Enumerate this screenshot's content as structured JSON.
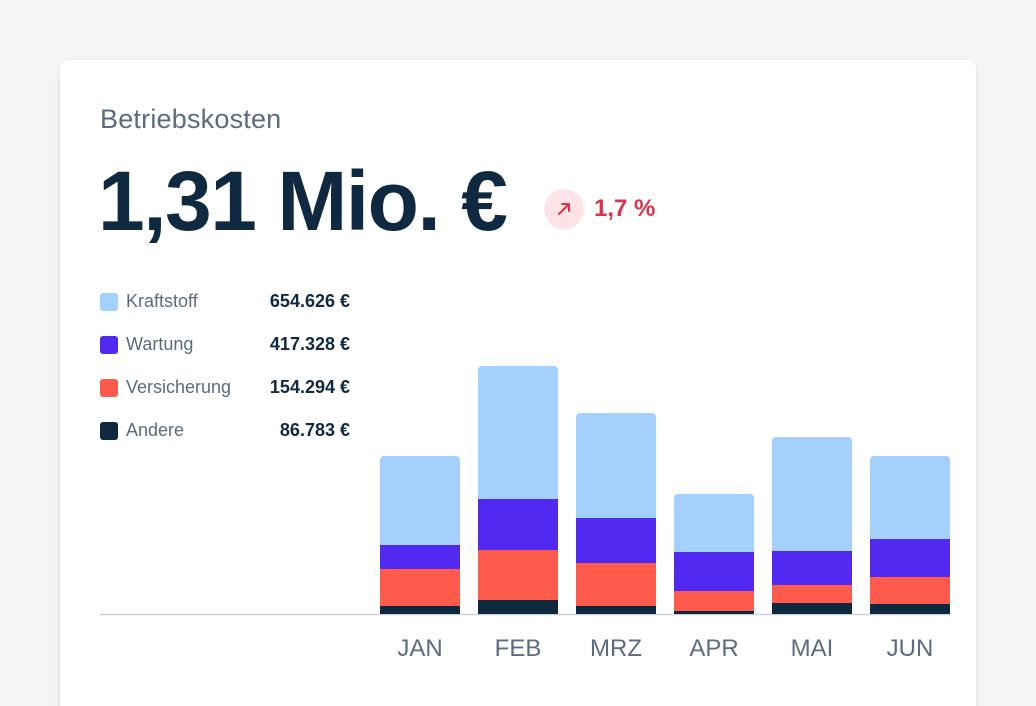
{
  "card": {
    "subtitle": "Betriebskosten",
    "amount": "1,31 Mio. €",
    "change": "1,7 %",
    "change_icon": "arrow-up-right-icon"
  },
  "colors": {
    "Kraftstoff": "#a3d0fc",
    "Wartung": "#5229f0",
    "Versicherung": "#ff5a4b",
    "Andere": "#0e2840",
    "change_text": "#e0314b",
    "change_bg": "#fde2e6"
  },
  "legend": [
    {
      "label": "Kraftstoff",
      "value": "654.626 €",
      "color": "#a3d0fc"
    },
    {
      "label": "Wartung",
      "value": "417.328 €",
      "color": "#5229f0"
    },
    {
      "label": "Versicherung",
      "value": "154.294 €",
      "color": "#ff5a4b"
    },
    {
      "label": "Andere",
      "value": "86.783 €",
      "color": "#0e2840"
    }
  ],
  "chart_data": {
    "type": "bar",
    "stacked": true,
    "categories": [
      "JAN",
      "FEB",
      "MRZ",
      "APR",
      "MAI",
      "JUN"
    ],
    "series": [
      {
        "name": "Andere",
        "values": [
          8,
          14,
          8,
          3,
          11,
          10
        ]
      },
      {
        "name": "Versicherung",
        "values": [
          37,
          50,
          43,
          20,
          18,
          27
        ]
      },
      {
        "name": "Wartung",
        "values": [
          24,
          51,
          45,
          39,
          34,
          38
        ]
      },
      {
        "name": "Kraftstoff",
        "values": [
          89,
          133,
          105,
          58,
          114,
          83
        ]
      }
    ],
    "ylim": [
      0,
      260
    ],
    "grid": false,
    "legend_position": "left"
  }
}
